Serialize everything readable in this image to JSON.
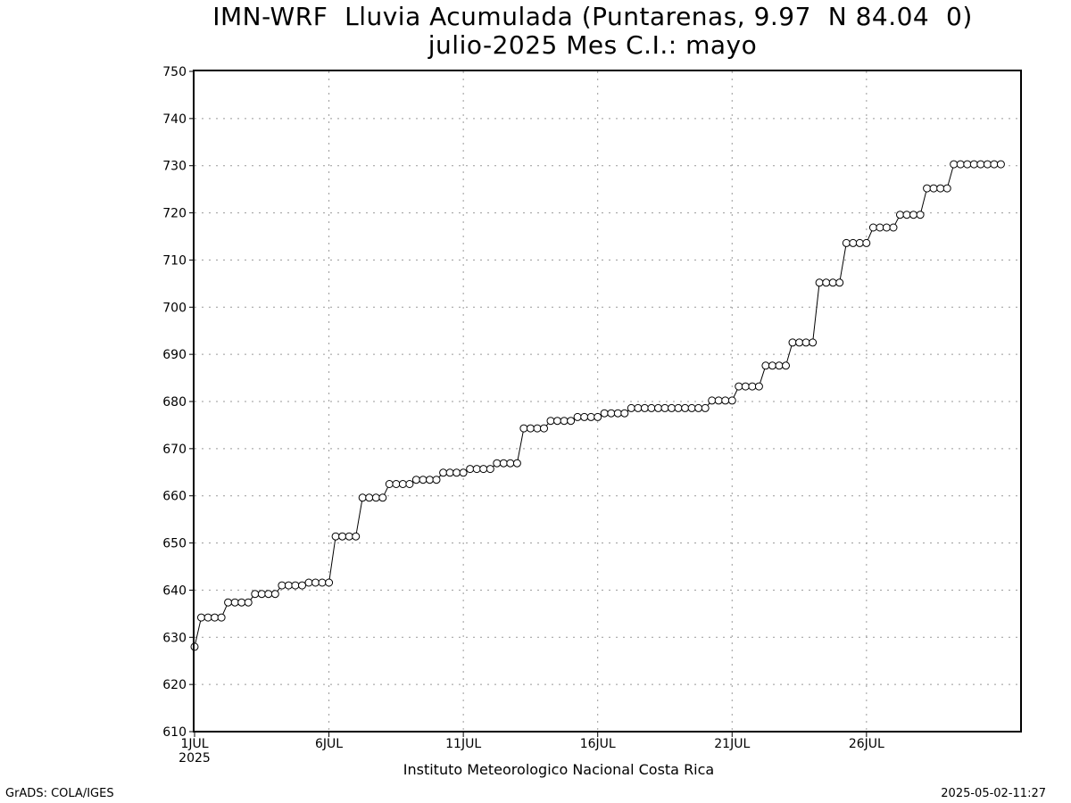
{
  "header": {
    "title_line1": "IMN-WRF  Lluvia Acumulada (Puntarenas, 9.97  N 84.04  0)",
    "title_line2": "julio-2025 Mes C.I.: mayo"
  },
  "footer": {
    "left": "GrADS: COLA/IGES",
    "right": "2025-05-02-11:27"
  },
  "chart_data": {
    "type": "line",
    "title": "IMN-WRF  Lluvia Acumulada (Puntarenas, 9.97  N 84.04  0)",
    "subtitle": "julio-2025 Mes C.I.: mayo",
    "xlabel": "Instituto Meteorologico Nacional Costa Rica",
    "ylabel": "",
    "x_unit": "day of July 2025 (decimal, 6-hourly steps)",
    "xlim": [
      1,
      31.75
    ],
    "ylim": [
      610,
      750
    ],
    "y_ticks": [
      610,
      620,
      630,
      640,
      650,
      660,
      670,
      680,
      690,
      700,
      710,
      720,
      730,
      740,
      750
    ],
    "x_ticks": [
      {
        "day": 1,
        "label": "1JUL",
        "sublabel": "2025"
      },
      {
        "day": 6,
        "label": "6JUL",
        "sublabel": ""
      },
      {
        "day": 11,
        "label": "11JUL",
        "sublabel": ""
      },
      {
        "day": 16,
        "label": "16JUL",
        "sublabel": ""
      },
      {
        "day": 21,
        "label": "21JUL",
        "sublabel": ""
      },
      {
        "day": 26,
        "label": "26JUL",
        "sublabel": ""
      }
    ],
    "grid": true,
    "marker": "open-circle",
    "x_start_day": 1,
    "x_step_days": 0.25,
    "values": [
      628.0,
      634.2,
      634.2,
      634.2,
      634.2,
      637.4,
      637.4,
      637.4,
      637.4,
      639.2,
      639.2,
      639.2,
      639.2,
      641.0,
      641.0,
      641.0,
      641.0,
      641.6,
      641.6,
      641.6,
      641.6,
      651.4,
      651.4,
      651.4,
      651.4,
      659.6,
      659.6,
      659.6,
      659.6,
      662.5,
      662.5,
      662.5,
      662.5,
      663.4,
      663.4,
      663.4,
      663.4,
      664.9,
      664.9,
      664.9,
      664.9,
      665.7,
      665.7,
      665.7,
      665.7,
      666.9,
      666.9,
      666.9,
      666.9,
      674.3,
      674.3,
      674.3,
      674.3,
      675.9,
      675.9,
      675.9,
      675.9,
      676.7,
      676.7,
      676.7,
      676.7,
      677.5,
      677.5,
      677.5,
      677.5,
      678.6,
      678.6,
      678.6,
      678.6,
      678.6,
      678.6,
      678.6,
      678.6,
      678.6,
      678.6,
      678.6,
      678.6,
      680.2,
      680.2,
      680.2,
      680.2,
      683.2,
      683.2,
      683.2,
      683.2,
      687.6,
      687.6,
      687.6,
      687.6,
      692.5,
      692.5,
      692.5,
      692.5,
      705.2,
      705.2,
      705.2,
      705.2,
      713.6,
      713.6,
      713.6,
      713.6,
      716.9,
      716.9,
      716.9,
      716.9,
      719.6,
      719.6,
      719.6,
      719.6,
      725.2,
      725.2,
      725.2,
      725.2,
      730.3,
      730.3,
      730.3,
      730.3,
      730.3,
      730.3,
      730.3,
      730.3
    ]
  }
}
